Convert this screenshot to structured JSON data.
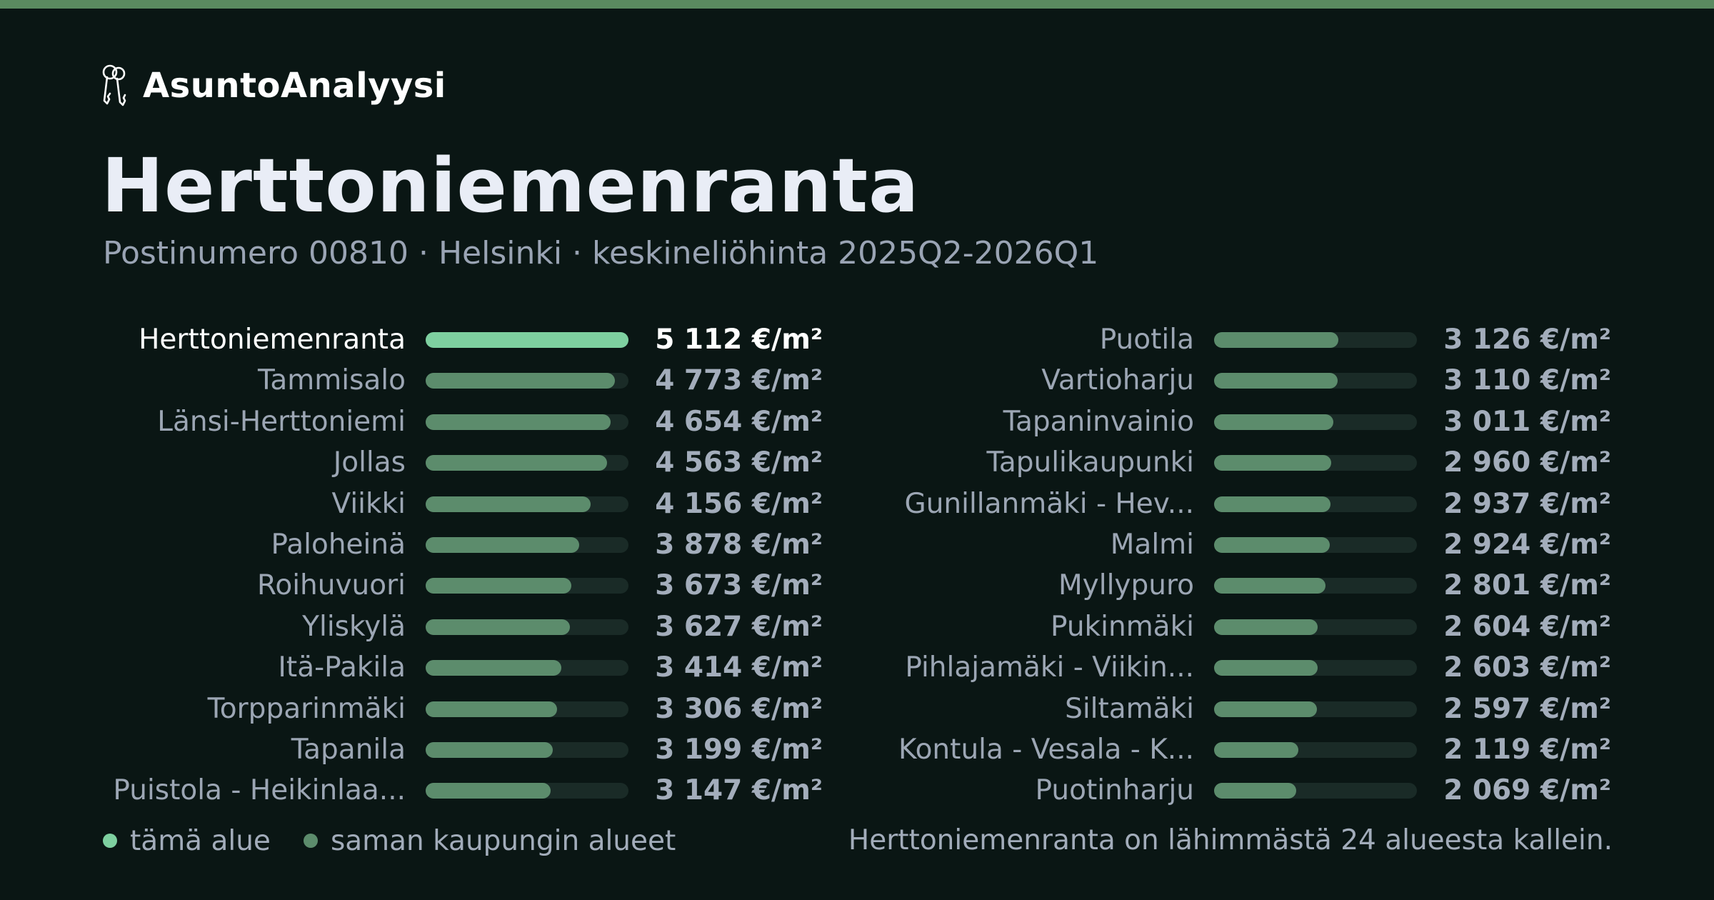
{
  "brand": {
    "name": "AsuntoAnalyysi",
    "icon": "keys-icon"
  },
  "title": "Herttoniemenranta",
  "subtitle": "Postinumero 00810 · Helsinki · keskineliöhinta 2025Q2-2026Q1",
  "colors": {
    "highlight": "#7ed0a0",
    "same_city": "#5c8c6c",
    "track": "#1a2b27",
    "accent_bar": "#5a8a60",
    "background": "#0a1614"
  },
  "chart_data": {
    "type": "bar",
    "orientation": "horizontal",
    "unit": "€/m²",
    "highlight": "Herttoniemenranta",
    "categories": [
      "Herttoniemenranta",
      "Tammisalo",
      "Länsi-Herttoniemi",
      "Jollas",
      "Viikki",
      "Paloheinä",
      "Roihuvuori",
      "Yliskylä",
      "Itä-Pakila",
      "Torpparinmäki",
      "Tapanila",
      "Puistola - Heikinlaa...",
      "Puotila",
      "Vartioharju",
      "Tapaninvainio",
      "Tapulikaupunki",
      "Gunillanmäki - Hev...",
      "Malmi",
      "Myllypuro",
      "Pukinmäki",
      "Pihlajamäki - Viikin...",
      "Siltamäki",
      "Kontula - Vesala - K...",
      "Puotinharju"
    ],
    "values": [
      5112,
      4773,
      4654,
      4563,
      4156,
      3878,
      3673,
      3627,
      3414,
      3306,
      3199,
      3147,
      3126,
      3110,
      3011,
      2960,
      2937,
      2924,
      2801,
      2604,
      2603,
      2597,
      2119,
      2069
    ],
    "value_labels": [
      "5 112 €/m²",
      "4 773 €/m²",
      "4 654 €/m²",
      "4 563 €/m²",
      "4 156 €/m²",
      "3 878 €/m²",
      "3 673 €/m²",
      "3 627 €/m²",
      "3 414 €/m²",
      "3 306 €/m²",
      "3 199 €/m²",
      "3 147 €/m²",
      "3 126 €/m²",
      "3 110 €/m²",
      "3 011 €/m²",
      "2 960 €/m²",
      "2 937 €/m²",
      "2 924 €/m²",
      "2 801 €/m²",
      "2 604 €/m²",
      "2 603 €/m²",
      "2 597 €/m²",
      "2 119 €/m²",
      "2 069 €/m²"
    ],
    "xlim": [
      0,
      5112
    ],
    "grid": false,
    "legend_position": "bottom-left"
  },
  "legend": [
    {
      "label": "tämä alue",
      "color": "#7ed0a0"
    },
    {
      "label": "saman kaupungin alueet",
      "color": "#5c8c6c"
    }
  ],
  "footnote": "Herttoniemenranta on lähimmästä 24 alueesta kallein."
}
